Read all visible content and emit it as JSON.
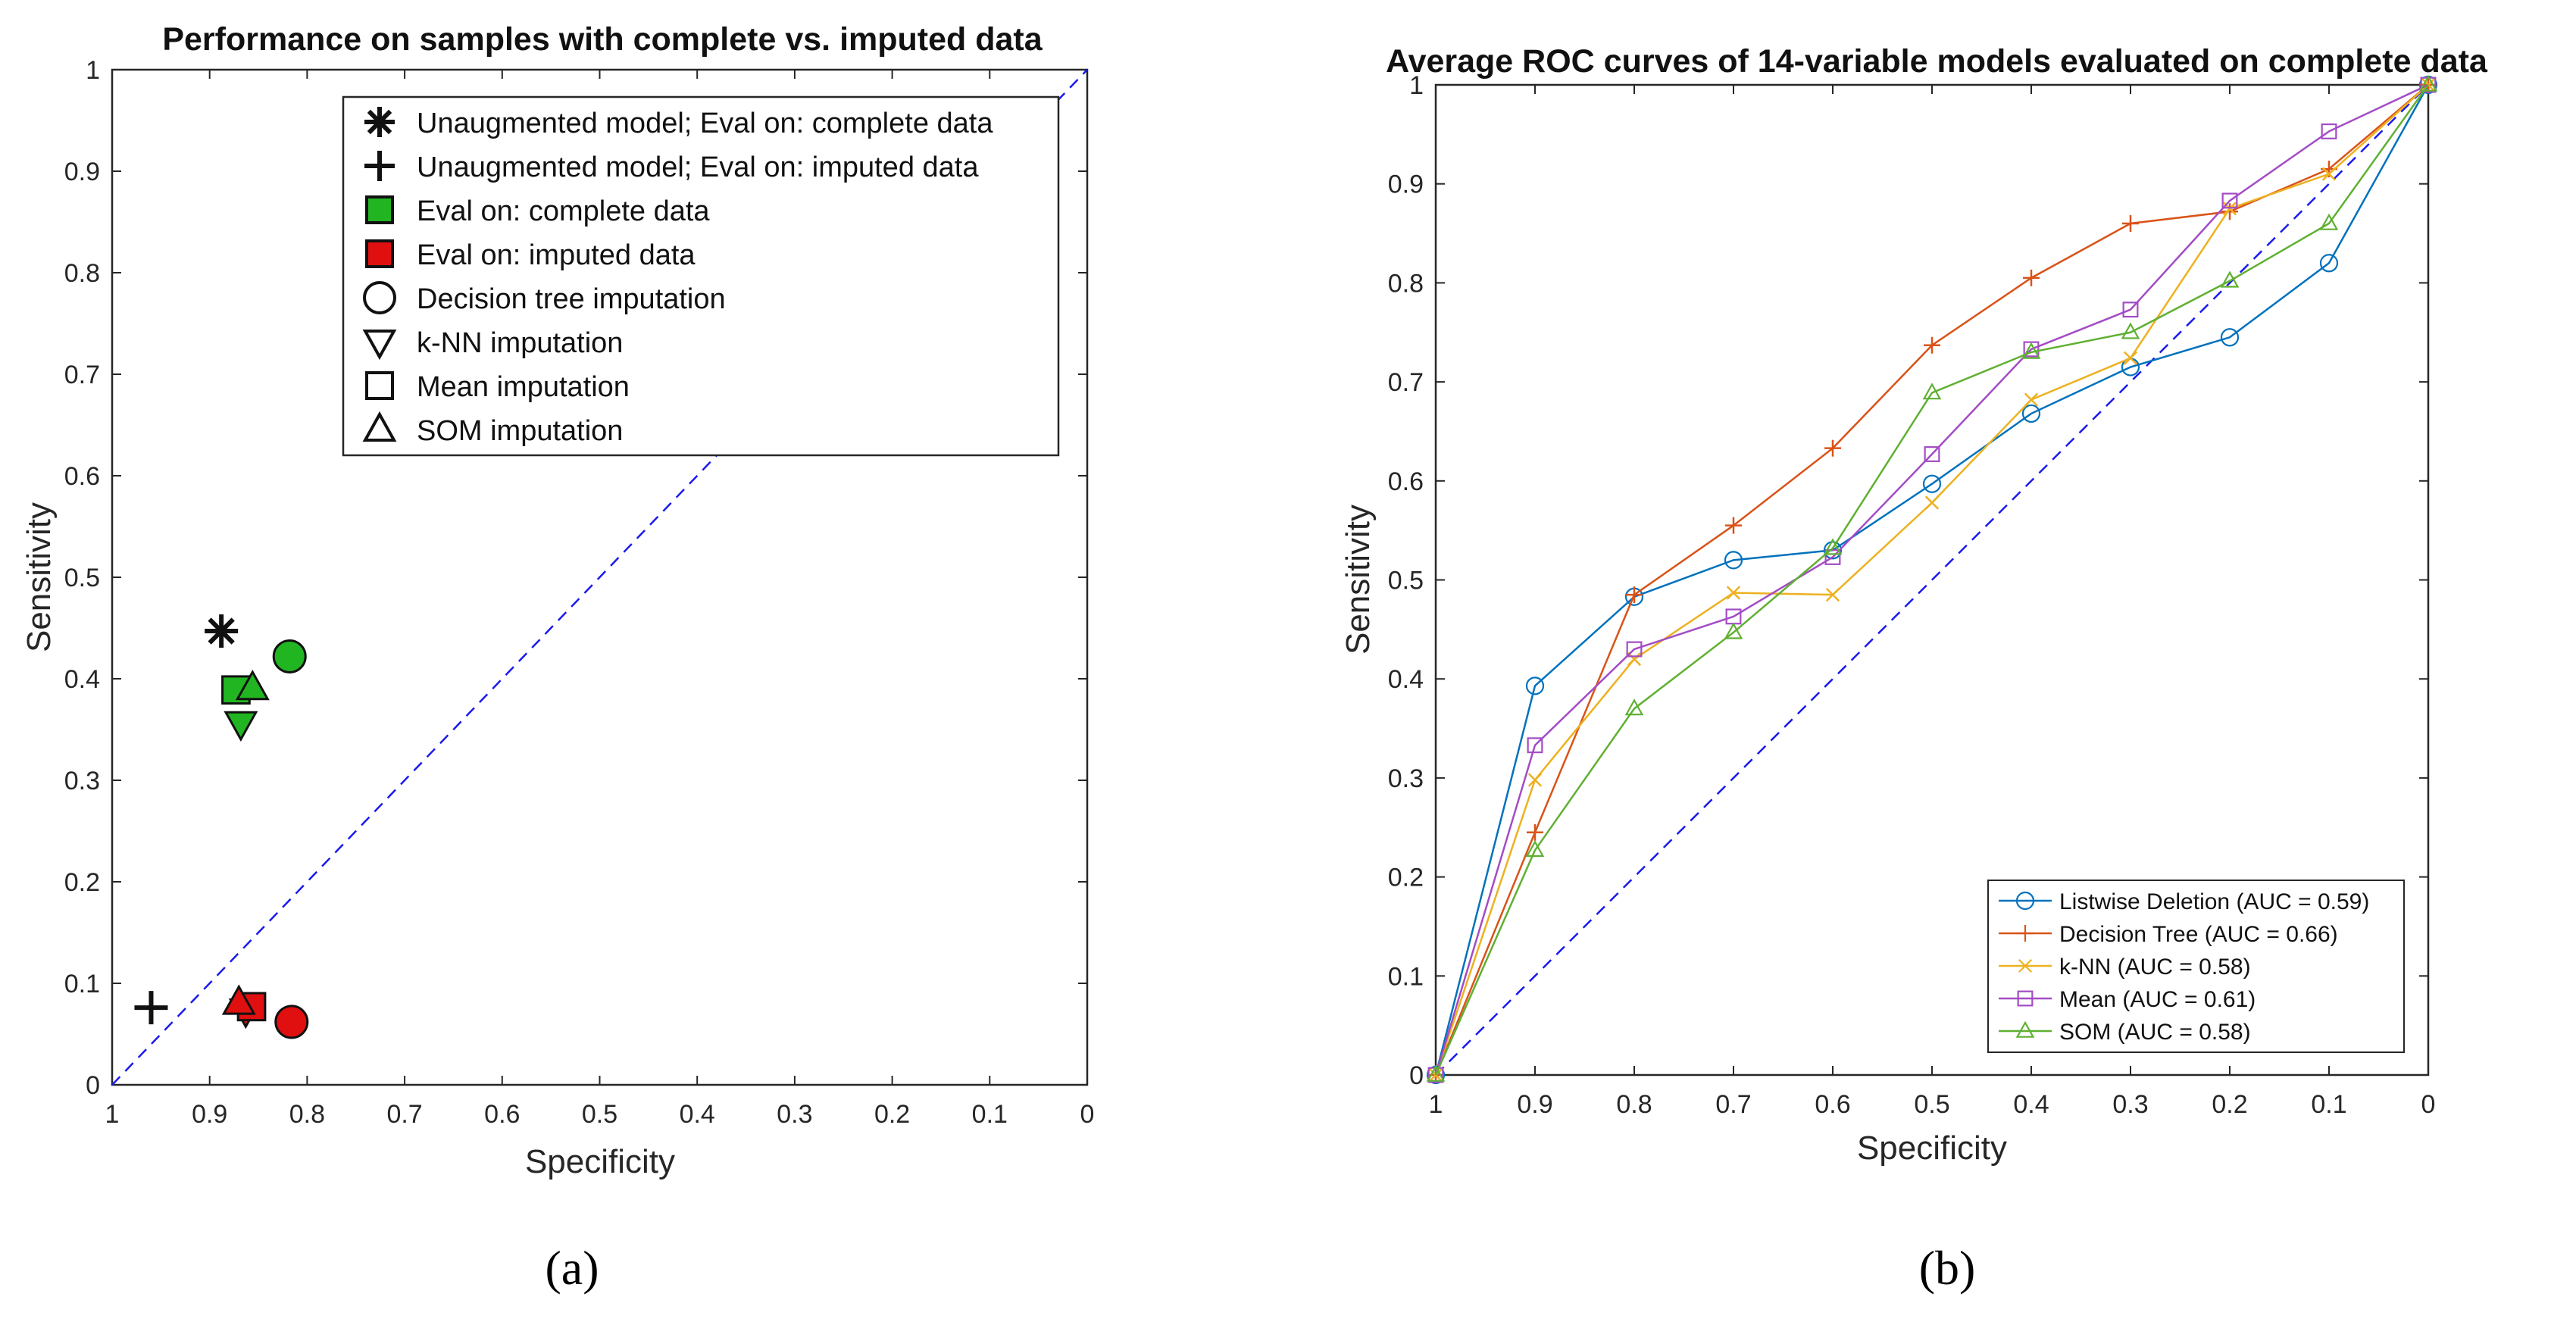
{
  "captions": {
    "a": "(a)",
    "b": "(b)"
  },
  "chart_data": [
    {
      "type": "scatter",
      "title": "Performance on samples with complete vs. imputed data",
      "xlabel": "Specificity",
      "ylabel": "Sensitivity",
      "xlim": [
        1,
        0
      ],
      "ylim": [
        0,
        1
      ],
      "x_ticks": [
        "1",
        "0.9",
        "0.8",
        "0.7",
        "0.6",
        "0.5",
        "0.4",
        "0.3",
        "0.2",
        "0.1",
        "0"
      ],
      "y_ticks": [
        "0",
        "0.1",
        "0.2",
        "0.3",
        "0.4",
        "0.5",
        "0.6",
        "0.7",
        "0.8",
        "0.9",
        "1"
      ],
      "reference_line": "diagonal",
      "legend": [
        {
          "marker": "asterisk",
          "label": "Unaugmented model; Eval on: complete data"
        },
        {
          "marker": "plus",
          "label": "Unaugmented model; Eval on: imputed data"
        },
        {
          "marker": "square-green",
          "label": "Eval on: complete data"
        },
        {
          "marker": "square-red",
          "label": "Eval on: imputed data"
        },
        {
          "marker": "circle",
          "label": "Decision tree imputation"
        },
        {
          "marker": "triangle-down",
          "label": "k-NN imputation"
        },
        {
          "marker": "square",
          "label": "Mean imputation"
        },
        {
          "marker": "triangle-up",
          "label": "SOM imputation"
        }
      ],
      "points": [
        {
          "name": "Unaugmented complete",
          "marker": "asterisk",
          "color": "#111111",
          "x": 0.888,
          "y": 0.447
        },
        {
          "name": "Unaugmented imputed",
          "marker": "plus",
          "color": "#111111",
          "x": 0.96,
          "y": 0.076
        },
        {
          "name": "Decision tree complete",
          "marker": "circle",
          "color": "#22b522",
          "x": 0.818,
          "y": 0.422
        },
        {
          "name": "k-NN complete",
          "marker": "triangle-down",
          "color": "#22b522",
          "x": 0.868,
          "y": 0.356
        },
        {
          "name": "Mean complete",
          "marker": "square",
          "color": "#22b522",
          "x": 0.873,
          "y": 0.389
        },
        {
          "name": "SOM complete",
          "marker": "triangle-up",
          "color": "#22b522",
          "x": 0.856,
          "y": 0.391
        },
        {
          "name": "Decision tree imputed",
          "marker": "circle",
          "color": "#e01010",
          "x": 0.816,
          "y": 0.062
        },
        {
          "name": "k-NN imputed",
          "marker": "triangle-down",
          "color": "#e01010",
          "x": 0.863,
          "y": 0.073
        },
        {
          "name": "Mean imputed",
          "marker": "square",
          "color": "#e01010",
          "x": 0.857,
          "y": 0.077
        },
        {
          "name": "SOM imputed",
          "marker": "triangle-up",
          "color": "#e01010",
          "x": 0.87,
          "y": 0.081
        }
      ]
    },
    {
      "type": "line",
      "title": "Average ROC curves of 14-variable models evaluated on complete data",
      "xlabel": "Specificity",
      "ylabel": "Sensitivity",
      "xlim": [
        1,
        0
      ],
      "ylim": [
        0,
        1
      ],
      "x_ticks": [
        "1",
        "0.9",
        "0.8",
        "0.7",
        "0.6",
        "0.5",
        "0.4",
        "0.3",
        "0.2",
        "0.1",
        "0"
      ],
      "y_ticks": [
        "0",
        "0.1",
        "0.2",
        "0.3",
        "0.4",
        "0.5",
        "0.6",
        "0.7",
        "0.8",
        "0.9",
        "1"
      ],
      "reference_line": "diagonal",
      "x": [
        1,
        0.9,
        0.8,
        0.7,
        0.6,
        0.5,
        0.4,
        0.3,
        0.2,
        0.1,
        0
      ],
      "legend_position": "bottom-right",
      "series": [
        {
          "name": "Listwise Deletion (AUC = 0.59)",
          "marker": "circle",
          "color": "#0072bd",
          "values": [
            0,
            0.393,
            0.483,
            0.52,
            0.53,
            0.597,
            0.668,
            0.715,
            0.745,
            0.82,
            1
          ]
        },
        {
          "name": "Decision Tree (AUC = 0.66)",
          "marker": "plus",
          "color": "#d95319",
          "values": [
            0,
            0.245,
            0.485,
            0.555,
            0.633,
            0.737,
            0.805,
            0.86,
            0.872,
            0.915,
            1
          ]
        },
        {
          "name": "k-NN (AUC = 0.58)",
          "marker": "x",
          "color": "#edb120",
          "values": [
            0,
            0.298,
            0.42,
            0.487,
            0.485,
            0.578,
            0.682,
            0.724,
            0.875,
            0.91,
            1
          ]
        },
        {
          "name": "Mean (AUC = 0.61)",
          "marker": "square",
          "color": "#a34cc5",
          "values": [
            0,
            0.333,
            0.43,
            0.463,
            0.523,
            0.627,
            0.733,
            0.773,
            0.883,
            0.953,
            1
          ]
        },
        {
          "name": "SOM (AUC = 0.58)",
          "marker": "triangle-up",
          "color": "#5fb032",
          "values": [
            0,
            0.227,
            0.37,
            0.447,
            0.532,
            0.689,
            0.73,
            0.75,
            0.802,
            0.86,
            1
          ]
        }
      ]
    }
  ]
}
